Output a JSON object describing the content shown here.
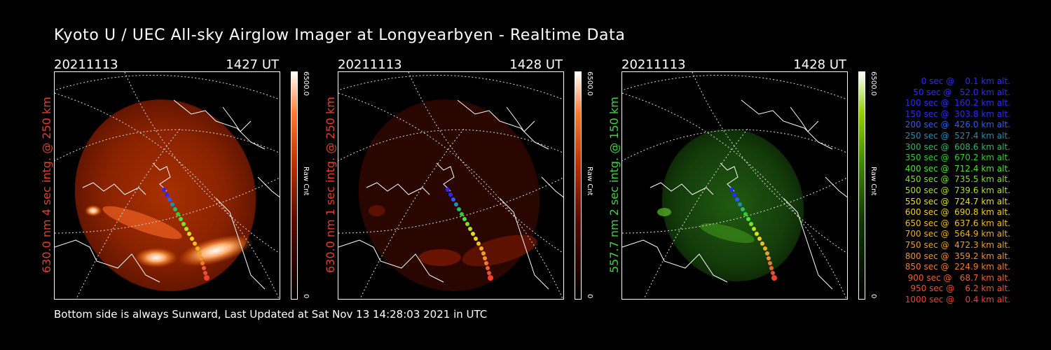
{
  "header": {
    "title": "Kyoto U / UEC All-sky Airglow Imager at Longyearbyen - Realtime Data"
  },
  "footer": {
    "text": "Bottom side is always Sunward, Last Updated at Sat Nov 13 14:28:03 2021 in UTC"
  },
  "panels": [
    {
      "date": "20211113",
      "time": "1427 UT",
      "side_label": "630.0 nm 4 sec intg. @ 250 km",
      "side_color": "#e0402a",
      "cbar_max": "6500.0",
      "cbar_min": "0",
      "cbar_unit": "Raw Cnt",
      "cbar_gradient": "linear-gradient(to top,#000 0%,#5a0a00 35%,#c03000 60%,#ff7a30 82%,#fff 100%)"
    },
    {
      "date": "20211113",
      "time": "1428 UT",
      "side_label": "630.0 nm 1 sec intg. @ 250 km",
      "side_color": "#e0402a",
      "cbar_max": "6500.0",
      "cbar_min": "0",
      "cbar_unit": "Raw Cnt",
      "cbar_gradient": "linear-gradient(to top,#000 0%,#5a0a00 35%,#c03000 60%,#ff7a30 82%,#fff 100%)"
    },
    {
      "date": "20211113",
      "time": "1428 UT",
      "side_label": "557.7 nm 2 sec intg. @ 150 km",
      "side_color": "#3fd43f",
      "cbar_max": "6500.0",
      "cbar_min": "0",
      "cbar_unit": "Raw Cnt",
      "cbar_gradient": "linear-gradient(to top,#000 0%,#0f3a00 35%,#3f8a00 60%,#8fd000 82%,#fff 100%)"
    }
  ],
  "legend": [
    {
      "text": "   0 sec @    0.1 km alt.",
      "color": "#2a2aff"
    },
    {
      "text": "  50 sec @   52.0 km alt.",
      "color": "#2a2aff"
    },
    {
      "text": " 100 sec @  160.2 km alt.",
      "color": "#2a2aff"
    },
    {
      "text": " 150 sec @  303.8 km alt.",
      "color": "#2a2aff"
    },
    {
      "text": " 200 sec @  426.0 km alt.",
      "color": "#2a5cff"
    },
    {
      "text": " 250 sec @  527.4 km alt.",
      "color": "#1f8fb0"
    },
    {
      "text": " 300 sec @  608.6 km alt.",
      "color": "#2fb86a"
    },
    {
      "text": " 350 sec @  670.2 km alt.",
      "color": "#2fd02f"
    },
    {
      "text": " 400 sec @  712.4 km alt.",
      "color": "#4fe03a"
    },
    {
      "text": " 450 sec @  735.5 km alt.",
      "color": "#7fe02a"
    },
    {
      "text": " 500 sec @  739.6 km alt.",
      "color": "#b0e020"
    },
    {
      "text": " 550 sec @  724.7 km alt.",
      "color": "#e0e020"
    },
    {
      "text": " 600 sec @  690.8 km alt.",
      "color": "#f0d020"
    },
    {
      "text": " 650 sec @  637.6 km alt.",
      "color": "#f0c020"
    },
    {
      "text": " 700 sec @  564.9 km alt.",
      "color": "#f0b020"
    },
    {
      "text": " 750 sec @  472.3 km alt.",
      "color": "#f0a020"
    },
    {
      "text": " 800 sec @  359.2 km alt.",
      "color": "#f09030"
    },
    {
      "text": " 850 sec @  224.9 km alt.",
      "color": "#f07a30"
    },
    {
      "text": " 900 sec @   68.7 km alt.",
      "color": "#f06030"
    },
    {
      "text": " 950 sec @    6.2 km alt.",
      "color": "#f05030"
    },
    {
      "text": "1000 sec @    0.4 km alt.",
      "color": "#f04030"
    }
  ]
}
